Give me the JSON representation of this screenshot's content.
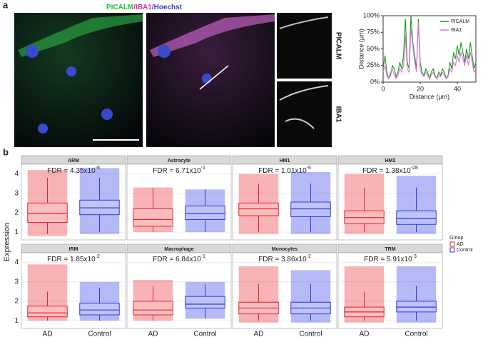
{
  "figure": {
    "panel_a": "a",
    "panel_b": "b",
    "stain_title": [
      "PICALM",
      "/IBA1",
      "/Hoechst"
    ],
    "stain_colors": [
      "#22c040",
      "#e0309a",
      "#3a3ad8"
    ],
    "side_labels": [
      "PICALM",
      "IBA1"
    ]
  },
  "chart_data": [
    {
      "type": "line",
      "x_label": "Distance (μm)",
      "y_label": "Distance (μm)",
      "x": [
        0,
        1,
        2,
        3,
        4,
        5,
        6,
        7,
        8,
        9,
        10,
        11,
        12,
        13,
        14,
        15,
        16,
        17,
        18,
        19,
        20,
        21,
        22,
        23,
        24,
        25,
        26,
        27,
        28,
        29,
        30,
        31,
        32,
        33,
        34,
        35,
        36,
        37,
        38,
        39,
        40,
        41,
        42,
        43,
        44,
        45,
        46,
        47,
        48,
        49,
        50
      ],
      "series": [
        {
          "name": "PICALM",
          "color": "#1a9a1a",
          "values": [
            20,
            40,
            15,
            5,
            10,
            25,
            20,
            8,
            15,
            30,
            20,
            40,
            95,
            30,
            20,
            100,
            60,
            40,
            20,
            95,
            30,
            15,
            10,
            20,
            15,
            5,
            15,
            20,
            10,
            5,
            15,
            10,
            20,
            15,
            5,
            10,
            30,
            20,
            45,
            35,
            55,
            40,
            60,
            45,
            30,
            50,
            35,
            60,
            40,
            20,
            30
          ]
        },
        {
          "name": "IBA1",
          "color": "#e070e0",
          "values": [
            15,
            25,
            10,
            5,
            15,
            20,
            10,
            5,
            10,
            20,
            15,
            25,
            70,
            20,
            15,
            80,
            55,
            30,
            15,
            90,
            20,
            10,
            8,
            15,
            10,
            5,
            10,
            15,
            8,
            5,
            10,
            8,
            15,
            10,
            5,
            8,
            20,
            15,
            30,
            25,
            40,
            30,
            45,
            35,
            25,
            40,
            25,
            45,
            30,
            15,
            20
          ]
        }
      ],
      "xlim": [
        0,
        50
      ],
      "xticks": [
        0,
        20,
        40
      ],
      "ylim": [
        0,
        100
      ],
      "yticks": [
        {
          "value": 0,
          "label": "0%"
        },
        {
          "value": 25,
          "label": "25%"
        },
        {
          "value": 50,
          "label": "50%"
        },
        {
          "value": 75,
          "label": "75%"
        },
        {
          "value": 100,
          "label": "100%"
        }
      ],
      "legend": "top-right"
    },
    {
      "type": "box",
      "y_label": "Expression",
      "groups": [
        "AD",
        "Control"
      ],
      "colors": [
        "#e8262a",
        "#2a3ae8"
      ],
      "legend_title": "Group",
      "ylim": [
        0.6,
        4.5
      ],
      "yticks": [
        1,
        2,
        3,
        4
      ],
      "facets": [
        {
          "title": "ARM",
          "fdr_base": "FDR = 4.35x10",
          "fdr_exp": "-8",
          "boxes": [
            {
              "q1": 1.5,
              "median": 1.95,
              "q3": 2.5,
              "whisker_low": 0.9,
              "whisker_high": 3.8,
              "points_range": [
                0.8,
                4.2
              ]
            },
            {
              "q1": 1.9,
              "median": 2.25,
              "q3": 2.65,
              "whisker_low": 1.0,
              "whisker_high": 3.8,
              "points_range": [
                0.9,
                4.3
              ]
            }
          ]
        },
        {
          "title": "Astrocyte",
          "fdr_base": "FDR = 6.71x10",
          "fdr_exp": "-1",
          "boxes": [
            {
              "q1": 1.3,
              "median": 1.65,
              "q3": 2.2,
              "whisker_low": 1.0,
              "whisker_high": 3.3,
              "points_range": [
                1.0,
                3.3
              ]
            },
            {
              "q1": 1.65,
              "median": 1.95,
              "q3": 2.35,
              "whisker_low": 1.0,
              "whisker_high": 3.2,
              "points_range": [
                1.0,
                3.2
              ]
            }
          ]
        },
        {
          "title": "HM1",
          "fdr_base": "FDR = 1.01x10",
          "fdr_exp": "-6",
          "boxes": [
            {
              "q1": 1.85,
              "median": 2.2,
              "q3": 2.5,
              "whisker_low": 1.0,
              "whisker_high": 3.5,
              "points_range": [
                0.9,
                4.0
              ]
            },
            {
              "q1": 1.8,
              "median": 2.2,
              "q3": 2.55,
              "whisker_low": 1.0,
              "whisker_high": 3.5,
              "points_range": [
                0.9,
                4.1
              ]
            }
          ]
        },
        {
          "title": "HM2",
          "fdr_base": "FDR = 1.38x10",
          "fdr_exp": "-28",
          "boxes": [
            {
              "q1": 1.45,
              "median": 1.75,
              "q3": 2.1,
              "whisker_low": 1.0,
              "whisker_high": 3.3,
              "points_range": [
                0.9,
                4.0
              ]
            },
            {
              "q1": 1.4,
              "median": 1.7,
              "q3": 2.1,
              "whisker_low": 1.0,
              "whisker_high": 3.3,
              "points_range": [
                0.9,
                3.9
              ]
            }
          ]
        },
        {
          "title": "IRM",
          "fdr_base": "FDR = 1.85x10",
          "fdr_exp": "-2",
          "boxes": [
            {
              "q1": 1.2,
              "median": 1.4,
              "q3": 1.75,
              "whisker_low": 1.0,
              "whisker_high": 2.5,
              "points_range": [
                1.0,
                3.9
              ]
            },
            {
              "q1": 1.3,
              "median": 1.55,
              "q3": 1.9,
              "whisker_low": 1.0,
              "whisker_high": 2.7,
              "points_range": [
                1.0,
                3.0
              ]
            }
          ]
        },
        {
          "title": "Macrophage",
          "fdr_base": "FDR = 6.84x10",
          "fdr_exp": "-1",
          "boxes": [
            {
              "q1": 1.3,
              "median": 1.55,
              "q3": 2.0,
              "whisker_low": 1.0,
              "whisker_high": 2.8,
              "points_range": [
                1.0,
                3.1
              ]
            },
            {
              "q1": 1.65,
              "median": 1.85,
              "q3": 2.25,
              "whisker_low": 1.1,
              "whisker_high": 2.9,
              "points_range": [
                1.1,
                3.0
              ]
            }
          ]
        },
        {
          "title": "Monocytes",
          "fdr_base": "FDR = 3.86x10",
          "fdr_exp": "-2",
          "boxes": [
            {
              "q1": 1.35,
              "median": 1.65,
              "q3": 1.95,
              "whisker_low": 1.0,
              "whisker_high": 2.9,
              "points_range": [
                0.9,
                3.8
              ]
            },
            {
              "q1": 1.35,
              "median": 1.65,
              "q3": 1.95,
              "whisker_low": 1.0,
              "whisker_high": 2.9,
              "points_range": [
                0.9,
                3.6
              ]
            }
          ]
        },
        {
          "title": "TRM",
          "fdr_base": "FDR = 5.91x10",
          "fdr_exp": "-3",
          "boxes": [
            {
              "q1": 1.2,
              "median": 1.45,
              "q3": 1.7,
              "whisker_low": 1.0,
              "whisker_high": 2.5,
              "points_range": [
                0.9,
                3.8
              ]
            },
            {
              "q1": 1.45,
              "median": 1.7,
              "q3": 2.0,
              "whisker_low": 1.0,
              "whisker_high": 2.8,
              "points_range": [
                0.9,
                3.8
              ]
            }
          ]
        }
      ]
    }
  ]
}
